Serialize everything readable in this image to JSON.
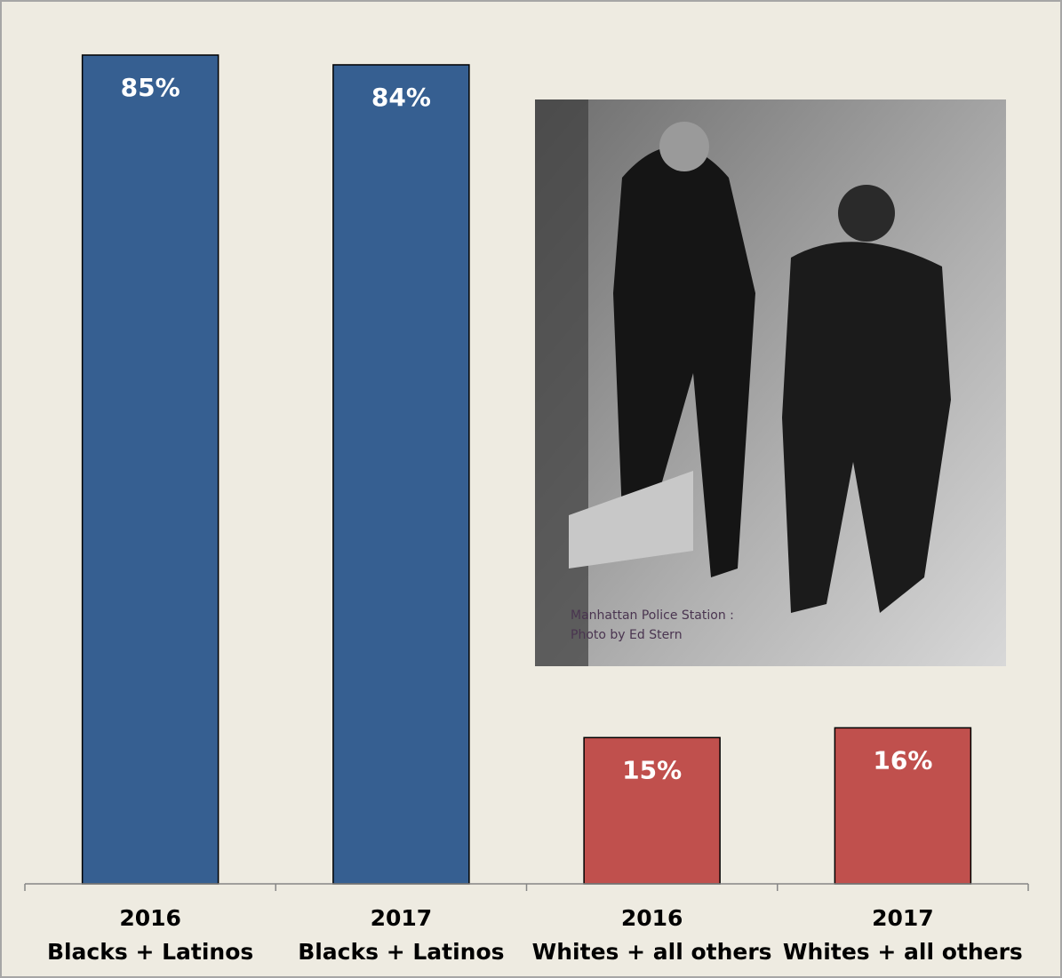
{
  "chart_data": {
    "type": "bar",
    "categories": [
      [
        "2016",
        "Blacks + Latinos"
      ],
      [
        "2017",
        "Blacks + Latinos"
      ],
      [
        "2016",
        "Whites + all others"
      ],
      [
        "2017",
        "Whites + all others"
      ]
    ],
    "values": [
      85,
      84,
      15,
      16
    ],
    "value_labels": [
      "85%",
      "84%",
      "15%",
      "16%"
    ],
    "colors": [
      "#365f91",
      "#365f91",
      "#c0504d",
      "#c0504d"
    ],
    "annotations": [
      "Manhattan Police Station :",
      "Photo by Ed Stern"
    ]
  }
}
